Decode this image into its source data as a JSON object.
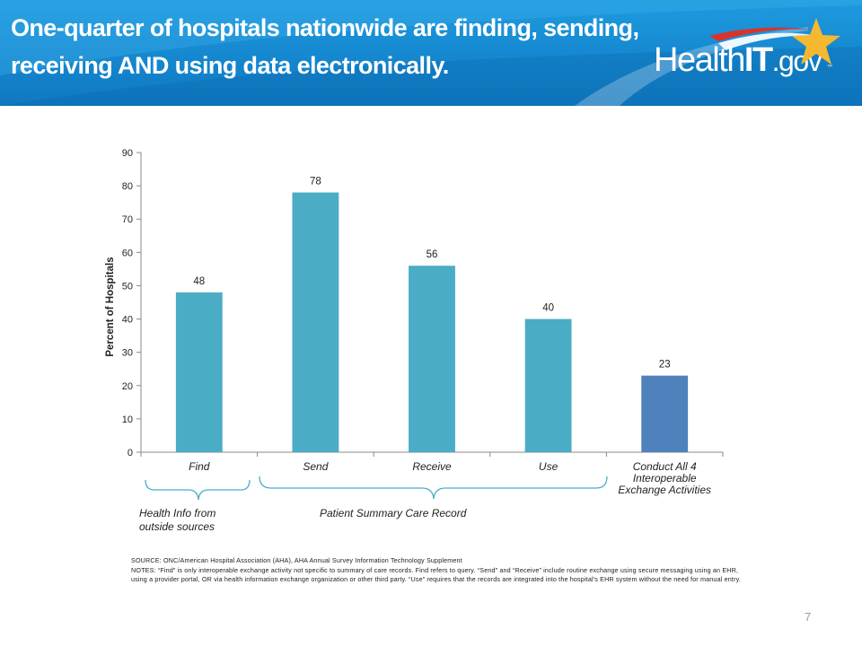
{
  "slide": {
    "title_line1": "One-quarter of hospitals nationwide are finding, sending,",
    "title_line2": "receiving AND using data electronically.",
    "logo": {
      "health": "Health",
      "it": "IT",
      "gov": ".gov",
      "tm": "™"
    },
    "page_number": "7"
  },
  "groups": [
    {
      "label_line1": "Health Info from",
      "label_line2": "outside sources"
    },
    {
      "label_line1": "Patient Summary Care Record",
      "label_line2": ""
    }
  ],
  "notes": {
    "source": "SOURCE: ONC/American Hospital Association (AHA), AHA Annual Survey Information Technology Supplement",
    "notes": "NOTES: “Find” is only interoperable exchange activity not specific to summary of care records. Find refers to query. “Send” and “Receive” include routine exchange using secure messaging using an EHR, using a provider portal, OR via health information exchange organization or other third party. “Use” requires that the records are integrated into the hospital's EHR system without the need for manual entry."
  },
  "colors": {
    "header": "#1587cf",
    "bar": "#4bacc6",
    "bar_highlight": "#4f81bd",
    "star": "#f5b830"
  },
  "chart_data": {
    "type": "bar",
    "title": "",
    "xlabel": "",
    "ylabel": "Percent  of Hospitals",
    "ylim": [
      0,
      90
    ],
    "yticks": [
      0,
      10,
      20,
      30,
      40,
      50,
      60,
      70,
      80,
      90
    ],
    "grid": false,
    "categories": [
      [
        "Find"
      ],
      [
        "Send"
      ],
      [
        "Receive"
      ],
      [
        "Use"
      ],
      [
        "Conduct All 4",
        "Interoperable",
        "Exchange Activities"
      ]
    ],
    "values": [
      48,
      78,
      56,
      40,
      23
    ],
    "highlight_index": 4
  }
}
